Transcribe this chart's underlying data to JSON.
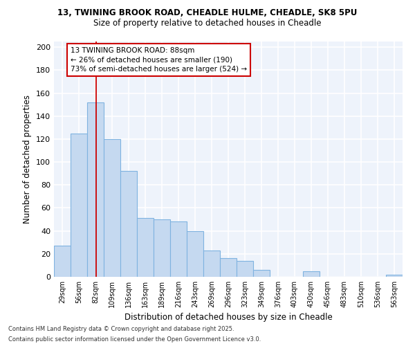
{
  "title_line1": "13, TWINING BROOK ROAD, CHEADLE HULME, CHEADLE, SK8 5PU",
  "title_line2": "Size of property relative to detached houses in Cheadle",
  "xlabel": "Distribution of detached houses by size in Cheadle",
  "ylabel": "Number of detached properties",
  "categories": [
    "29sqm",
    "56sqm",
    "82sqm",
    "109sqm",
    "136sqm",
    "163sqm",
    "189sqm",
    "216sqm",
    "243sqm",
    "269sqm",
    "296sqm",
    "323sqm",
    "349sqm",
    "376sqm",
    "403sqm",
    "430sqm",
    "456sqm",
    "483sqm",
    "510sqm",
    "536sqm",
    "563sqm"
  ],
  "values": [
    27,
    125,
    152,
    120,
    92,
    51,
    50,
    48,
    40,
    23,
    16,
    14,
    6,
    0,
    0,
    5,
    0,
    0,
    0,
    0,
    2
  ],
  "bar_color": "#c5d9f0",
  "bar_edge_color": "#7fb3e0",
  "annotation_text": "13 TWINING BROOK ROAD: 88sqm\n← 26% of detached houses are smaller (190)\n73% of semi-detached houses are larger (524) →",
  "annotation_box_color": "#ffffff",
  "annotation_border_color": "#cc0000",
  "vline_color": "#cc0000",
  "vline_x_index": 2,
  "vline_x_offset": 0.5,
  "ylim": [
    0,
    205
  ],
  "yticks": [
    0,
    20,
    40,
    60,
    80,
    100,
    120,
    140,
    160,
    180,
    200
  ],
  "footer_line1": "Contains HM Land Registry data © Crown copyright and database right 2025.",
  "footer_line2": "Contains public sector information licensed under the Open Government Licence v3.0.",
  "bg_color": "#eef3fb",
  "grid_color": "#ffffff",
  "fig_bg_color": "#ffffff"
}
